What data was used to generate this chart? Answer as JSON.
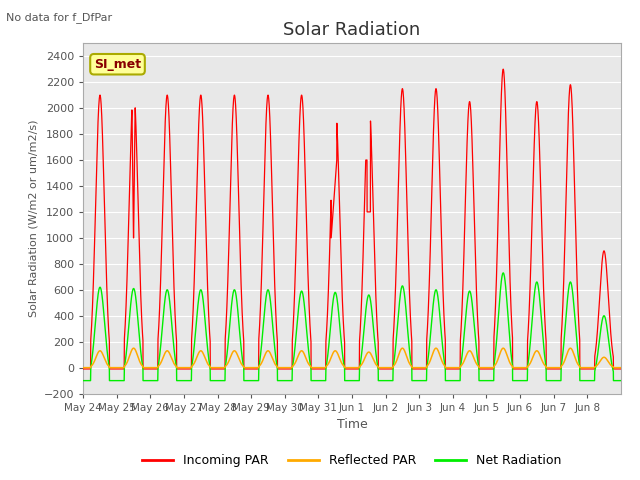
{
  "title": "Solar Radiation",
  "subtitle": "No data for f_DfPar",
  "ylabel": "Solar Radiation (W/m2 or um/m2/s)",
  "xlabel": "Time",
  "legend_label": "SI_met",
  "ylim": [
    -200,
    2500
  ],
  "yticks": [
    -200,
    0,
    200,
    400,
    600,
    800,
    1000,
    1200,
    1400,
    1600,
    1800,
    2000,
    2200,
    2400
  ],
  "x_tick_labels": [
    "May 24",
    "May 25",
    "May 26",
    "May 27",
    "May 28",
    "May 29",
    "May 30",
    "May 31",
    "Jun 1",
    "Jun 2",
    "Jun 3",
    "Jun 4",
    "Jun 5",
    "Jun 6",
    "Jun 7",
    "Jun 8"
  ],
  "color_incoming": "#ff0000",
  "color_reflected": "#ffaa00",
  "color_net": "#00ee00",
  "background_color": "#e8e8e8",
  "legend_box_color": "#ffff99",
  "legend_box_edge": "#aaaa00",
  "num_days": 16,
  "peak_incoming": [
    2100,
    2150,
    2100,
    2100,
    2100,
    2100,
    2100,
    2050,
    2030,
    2150,
    2150,
    2050,
    2300,
    2050,
    2180,
    900
  ],
  "peak_reflected": [
    130,
    150,
    130,
    130,
    130,
    130,
    130,
    130,
    120,
    150,
    150,
    130,
    150,
    130,
    150,
    80
  ],
  "peak_net": [
    620,
    610,
    600,
    600,
    600,
    600,
    590,
    580,
    560,
    630,
    600,
    590,
    730,
    660,
    660,
    400
  ],
  "night_incoming": -10,
  "night_reflected": 0,
  "night_net": -100,
  "has_dip_day1": true,
  "dip1_value": 1000,
  "cloudy_days": [
    7,
    8
  ],
  "cloudy_peaks": [
    1300,
    1600
  ]
}
